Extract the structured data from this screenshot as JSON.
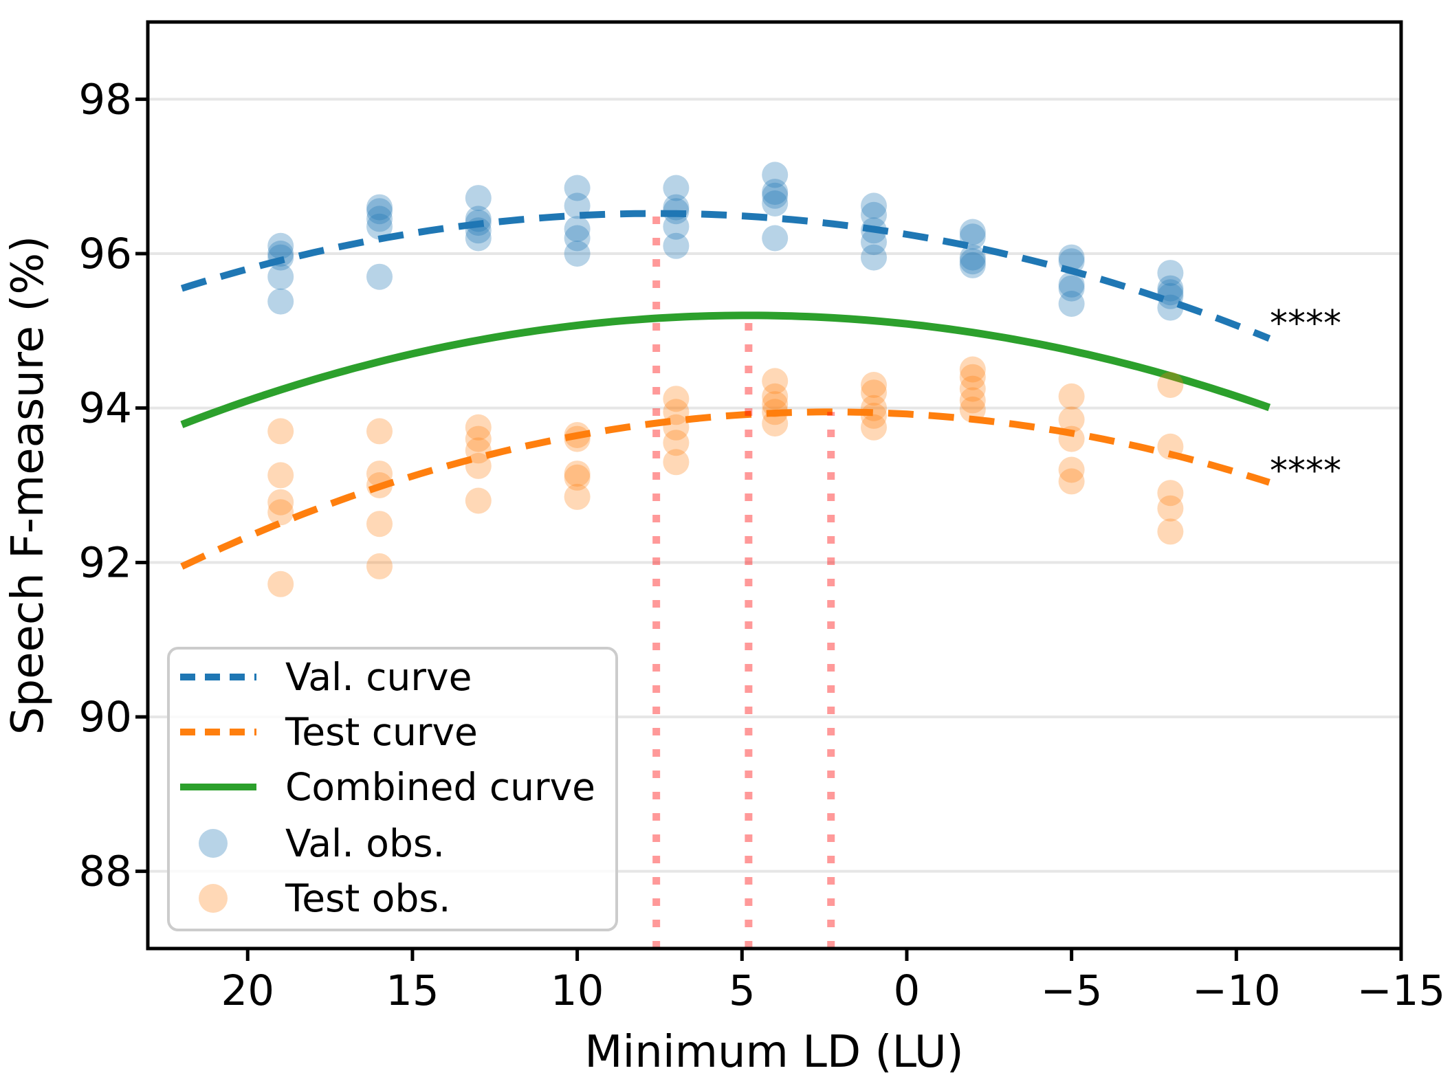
{
  "chart_data": {
    "type": "scatter",
    "title": "",
    "xlabel": "Minimum LD (LU)",
    "ylabel": "Speech F-measure (%)",
    "xlim": [
      23.03,
      -15.0
    ],
    "ylim": [
      87.0,
      99.0
    ],
    "x_axis_reversed": true,
    "grid": "horizontal",
    "x_ticks": [
      20,
      15,
      10,
      5,
      0,
      -5,
      -10,
      -15
    ],
    "x_tick_labels": [
      "20",
      "15",
      "10",
      "5",
      "0",
      "−5",
      "−10",
      "−15"
    ],
    "y_ticks": [
      88,
      90,
      92,
      94,
      96,
      98
    ],
    "y_tick_labels": [
      "88",
      "90",
      "92",
      "94",
      "96",
      "98"
    ],
    "colors": {
      "val_curve": "#1f77b4",
      "test_curve": "#ff7f0e",
      "combined_curve": "#2ca02c",
      "val_obs": "rgba(31,119,180,0.32)",
      "test_obs": "rgba(255,127,14,0.30)",
      "optimum_vline": "rgba(255,0,0,0.40)",
      "gridline": "#e6e6e6",
      "spine": "#000000",
      "legend_border": "#cccccc"
    },
    "curves": [
      {
        "name": "Val. curve",
        "style": "dashed",
        "color_key": "val_curve",
        "peak_x": 7.6,
        "peak_y": 96.52,
        "a": -0.00468,
        "x_start": 22.0,
        "x_end": -11.0
      },
      {
        "name": "Test curve",
        "style": "dashed",
        "color_key": "test_curve",
        "peak_x": 2.3,
        "peak_y": 93.95,
        "a": -0.00516,
        "x_start": 22.0,
        "x_end": -11.0
      },
      {
        "name": "Combined curve",
        "style": "solid",
        "color_key": "combined_curve",
        "peak_x": 4.8,
        "peak_y": 95.2,
        "a": -0.00478,
        "x_start": 22.0,
        "x_end": -11.0
      }
    ],
    "optimum_vlines": [
      {
        "x": 7.6,
        "top": 96.52
      },
      {
        "x": 4.8,
        "top": 95.2
      },
      {
        "x": 2.3,
        "top": 93.95
      }
    ],
    "series": [
      {
        "name": "Val. obs.",
        "color_key": "val_obs",
        "points": [
          [
            19,
            96.1
          ],
          [
            19,
            96.0
          ],
          [
            19,
            95.95
          ],
          [
            19,
            95.7
          ],
          [
            19,
            95.38
          ],
          [
            16,
            96.6
          ],
          [
            16,
            96.55
          ],
          [
            16,
            96.45
          ],
          [
            16,
            96.35
          ],
          [
            16,
            95.7
          ],
          [
            13,
            96.72
          ],
          [
            13,
            96.45
          ],
          [
            13,
            96.4
          ],
          [
            13,
            96.3
          ],
          [
            13,
            96.2
          ],
          [
            10,
            96.85
          ],
          [
            10,
            96.62
          ],
          [
            10,
            96.32
          ],
          [
            10,
            96.2
          ],
          [
            10,
            96.0
          ],
          [
            7,
            96.85
          ],
          [
            7,
            96.6
          ],
          [
            7,
            96.55
          ],
          [
            7,
            96.35
          ],
          [
            7,
            96.1
          ],
          [
            4,
            97.02
          ],
          [
            4,
            96.8
          ],
          [
            4,
            96.75
          ],
          [
            4,
            96.65
          ],
          [
            4,
            96.2
          ],
          [
            1,
            96.62
          ],
          [
            1,
            96.5
          ],
          [
            1,
            96.3
          ],
          [
            1,
            96.15
          ],
          [
            1,
            95.95
          ],
          [
            -2,
            96.28
          ],
          [
            -2,
            96.22
          ],
          [
            -2,
            95.95
          ],
          [
            -2,
            95.9
          ],
          [
            -2,
            95.85
          ],
          [
            -5,
            95.95
          ],
          [
            -5,
            95.9
          ],
          [
            -5,
            95.6
          ],
          [
            -5,
            95.55
          ],
          [
            -5,
            95.35
          ],
          [
            -8,
            95.75
          ],
          [
            -8,
            95.55
          ],
          [
            -8,
            95.5
          ],
          [
            -8,
            95.45
          ],
          [
            -8,
            95.3
          ]
        ]
      },
      {
        "name": "Test obs.",
        "color_key": "test_obs",
        "points": [
          [
            19,
            93.7
          ],
          [
            19,
            93.13
          ],
          [
            19,
            92.78
          ],
          [
            19,
            92.65
          ],
          [
            19,
            91.72
          ],
          [
            16,
            93.7
          ],
          [
            16,
            93.15
          ],
          [
            16,
            93.0
          ],
          [
            16,
            92.5
          ],
          [
            16,
            91.95
          ],
          [
            13,
            93.75
          ],
          [
            13,
            93.6
          ],
          [
            13,
            93.45
          ],
          [
            13,
            93.25
          ],
          [
            13,
            92.8
          ],
          [
            10,
            93.65
          ],
          [
            10,
            93.6
          ],
          [
            10,
            93.15
          ],
          [
            10,
            93.1
          ],
          [
            10,
            92.85
          ],
          [
            7,
            94.12
          ],
          [
            7,
            93.95
          ],
          [
            7,
            93.75
          ],
          [
            7,
            93.55
          ],
          [
            7,
            93.3
          ],
          [
            4,
            94.35
          ],
          [
            4,
            94.15
          ],
          [
            4,
            94.05
          ],
          [
            4,
            93.95
          ],
          [
            4,
            93.8
          ],
          [
            1,
            94.3
          ],
          [
            1,
            94.2
          ],
          [
            1,
            94.0
          ],
          [
            1,
            93.9
          ],
          [
            1,
            93.75
          ],
          [
            -2,
            94.5
          ],
          [
            -2,
            94.4
          ],
          [
            -2,
            94.25
          ],
          [
            -2,
            94.1
          ],
          [
            -2,
            93.98
          ],
          [
            -5,
            94.15
          ],
          [
            -5,
            93.85
          ],
          [
            -5,
            93.6
          ],
          [
            -5,
            93.2
          ],
          [
            -5,
            93.05
          ],
          [
            -8,
            94.3
          ],
          [
            -8,
            93.5
          ],
          [
            -8,
            92.9
          ],
          [
            -8,
            92.7
          ],
          [
            -8,
            92.4
          ]
        ]
      }
    ],
    "annotations": [
      {
        "text": "****",
        "x": -12.1,
        "y": 95.18
      },
      {
        "text": "****",
        "x": -12.1,
        "y": 93.27
      }
    ],
    "legend": {
      "position": "lower left",
      "entries": [
        {
          "label": "Val. curve",
          "marker": "dashed-line",
          "color_key": "val_curve"
        },
        {
          "label": "Test curve",
          "marker": "dashed-line",
          "color_key": "test_curve"
        },
        {
          "label": "Combined curve",
          "marker": "solid-line",
          "color_key": "combined_curve"
        },
        {
          "label": "Val. obs.",
          "marker": "dot",
          "color_key": "val_obs"
        },
        {
          "label": "Test obs.",
          "marker": "dot",
          "color_key": "test_obs"
        }
      ]
    }
  }
}
